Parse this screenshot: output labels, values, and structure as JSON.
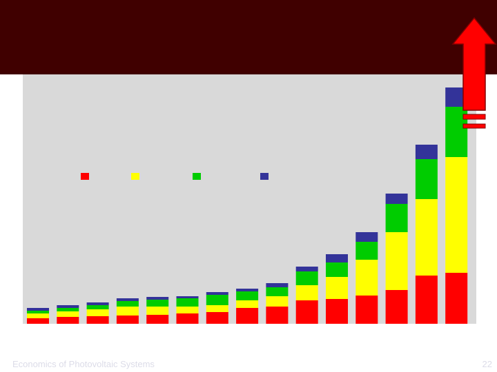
{
  "chart_data": {
    "type": "stacked_bar",
    "categories": [
      null,
      null,
      null,
      null,
      null,
      null,
      null,
      null,
      null,
      null,
      null,
      null,
      null,
      null,
      null
    ],
    "series": [
      {
        "color": "#ff0000",
        "values": [
          8,
          10,
          11,
          12,
          13,
          15,
          17,
          23,
          25,
          34,
          36,
          41,
          49,
          70,
          74
        ]
      },
      {
        "color": "#ffff00",
        "values": [
          7,
          8,
          10,
          13,
          12,
          10,
          10,
          11,
          15,
          22,
          32,
          52,
          84,
          111,
          168
        ]
      },
      {
        "color": "#00cc00",
        "values": [
          4,
          5,
          6,
          8,
          10,
          12,
          15,
          13,
          13,
          20,
          21,
          26,
          41,
          58,
          73
        ]
      },
      {
        "color": "#333399",
        "values": [
          4,
          4,
          4,
          4,
          4,
          3,
          4,
          4,
          6,
          7,
          12,
          14,
          15,
          21,
          28
        ]
      }
    ],
    "ylim": [
      0,
      362
    ]
  },
  "footer": {
    "text": "Economics of Photovoltaic Systems",
    "page": "22"
  }
}
